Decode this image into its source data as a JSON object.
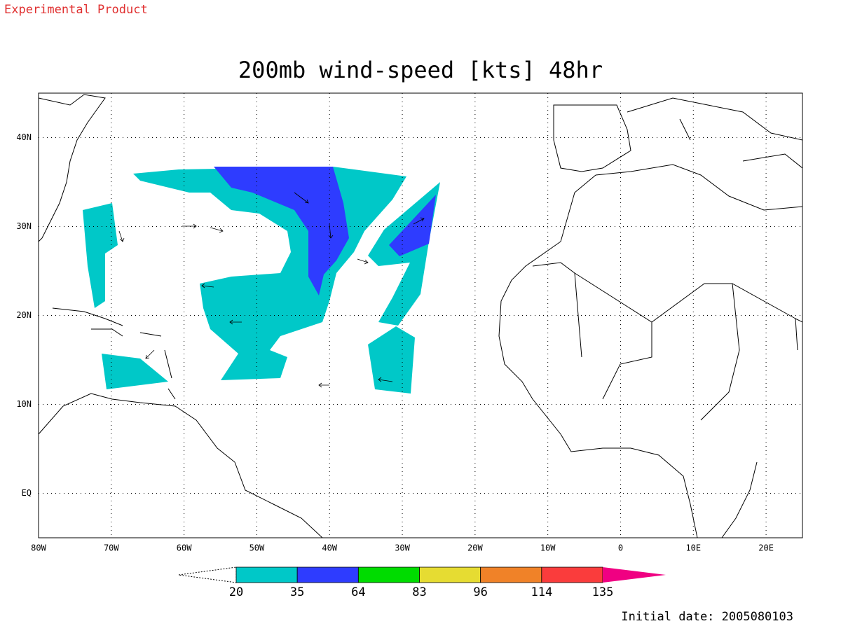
{
  "header": {
    "label": "Experimental Product"
  },
  "map": {
    "title": "200mb wind-speed [kts] 48hr",
    "lon_range": [
      -80,
      25
    ],
    "lat_range": [
      -5,
      45
    ],
    "lon_ticks": [
      {
        "value": -80,
        "label": "80W"
      },
      {
        "value": -70,
        "label": "70W"
      },
      {
        "value": -60,
        "label": "60W"
      },
      {
        "value": -50,
        "label": "50W"
      },
      {
        "value": -40,
        "label": "40W"
      },
      {
        "value": -30,
        "label": "30W"
      },
      {
        "value": -20,
        "label": "20W"
      },
      {
        "value": -10,
        "label": "10W"
      },
      0,
      {
        "value": 10,
        "label": "10E"
      },
      {
        "value": 20,
        "label": "20E"
      }
    ],
    "lat_ticks": [
      {
        "value": 0,
        "label": "EQ"
      },
      {
        "value": 10,
        "label": "10N"
      },
      {
        "value": 20,
        "label": "20N"
      },
      {
        "value": 30,
        "label": "30N"
      },
      {
        "value": 40,
        "label": "40N"
      }
    ],
    "grid": true,
    "colorbar": {
      "levels": [
        20,
        35,
        64,
        83,
        96,
        114,
        135
      ],
      "colors": [
        "#ffffff",
        "#00c8c8",
        "#2e3cff",
        "#00dc00",
        "#e6dc32",
        "#f08228",
        "#fa3c3c",
        "#f00082"
      ]
    }
  },
  "footer": {
    "label": "Initial date: 2005080103"
  }
}
